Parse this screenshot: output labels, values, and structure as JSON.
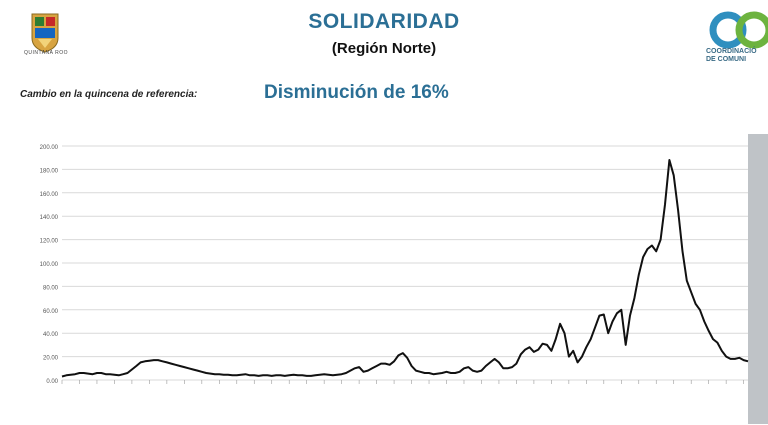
{
  "header": {
    "title": "SOLIDARIDAD",
    "subtitle": "(Región Norte)",
    "left_logo_text": "QUINTANA ROO",
    "right_logo_text_line1": "COORDINACIÓ",
    "right_logo_text_line2": "DE COMUNI"
  },
  "summary": {
    "label": "Cambio en la quincena de referencia:",
    "value": "Disminución de 16%"
  },
  "colors": {
    "title": "#2b6f95",
    "line": "#111111",
    "grid": "#d9d9d9",
    "side_band": "#bfc3c7"
  },
  "chart_data": {
    "type": "line",
    "title": "",
    "xlabel": "",
    "ylabel": "",
    "ylim": [
      0,
      200
    ],
    "yticks": [
      0,
      20,
      40,
      60,
      80,
      100,
      120,
      140,
      160,
      180,
      200
    ],
    "ytick_labels": [
      "0.00",
      "20.00",
      "40.00",
      "60.00",
      "80.00",
      "100.00",
      "120.00",
      "140.00",
      "160.00",
      "180.00",
      "200.00"
    ],
    "grid": true,
    "series": [
      {
        "name": "",
        "values": [
          3,
          4,
          4.5,
          5,
          6,
          6,
          5.5,
          5,
          6,
          6,
          5,
          5,
          4.5,
          4,
          5,
          6,
          9,
          12,
          15,
          16,
          16.5,
          17,
          17,
          16,
          15,
          14,
          13,
          12,
          11,
          10,
          9,
          8,
          7,
          6,
          5.5,
          5,
          5,
          4.5,
          4.5,
          4,
          4,
          4.5,
          5,
          4,
          4,
          3.5,
          4,
          4,
          3.5,
          4,
          4,
          3.5,
          4,
          4.5,
          4,
          4,
          3.5,
          3.5,
          4,
          4.5,
          5,
          4.5,
          4,
          4.5,
          5,
          6,
          8,
          10,
          11,
          7,
          8,
          10,
          12,
          14,
          14,
          13,
          16,
          21,
          23,
          19,
          12,
          8,
          7,
          6,
          6,
          5,
          5.5,
          6,
          7,
          6,
          6,
          7,
          10,
          11,
          8,
          7,
          8,
          12,
          15,
          18,
          15,
          10,
          10,
          11,
          14,
          22,
          26,
          28,
          24,
          26,
          31,
          30,
          25,
          35,
          48,
          40,
          20,
          25,
          15,
          20,
          28,
          35,
          45,
          55,
          56,
          40,
          50,
          57,
          60,
          30,
          55,
          70,
          90,
          105,
          112,
          115,
          110,
          120,
          150,
          188,
          175,
          145,
          110,
          85,
          75,
          65,
          60,
          50,
          42,
          35,
          32,
          25,
          20,
          18,
          18,
          19,
          17,
          16
        ]
      }
    ]
  }
}
